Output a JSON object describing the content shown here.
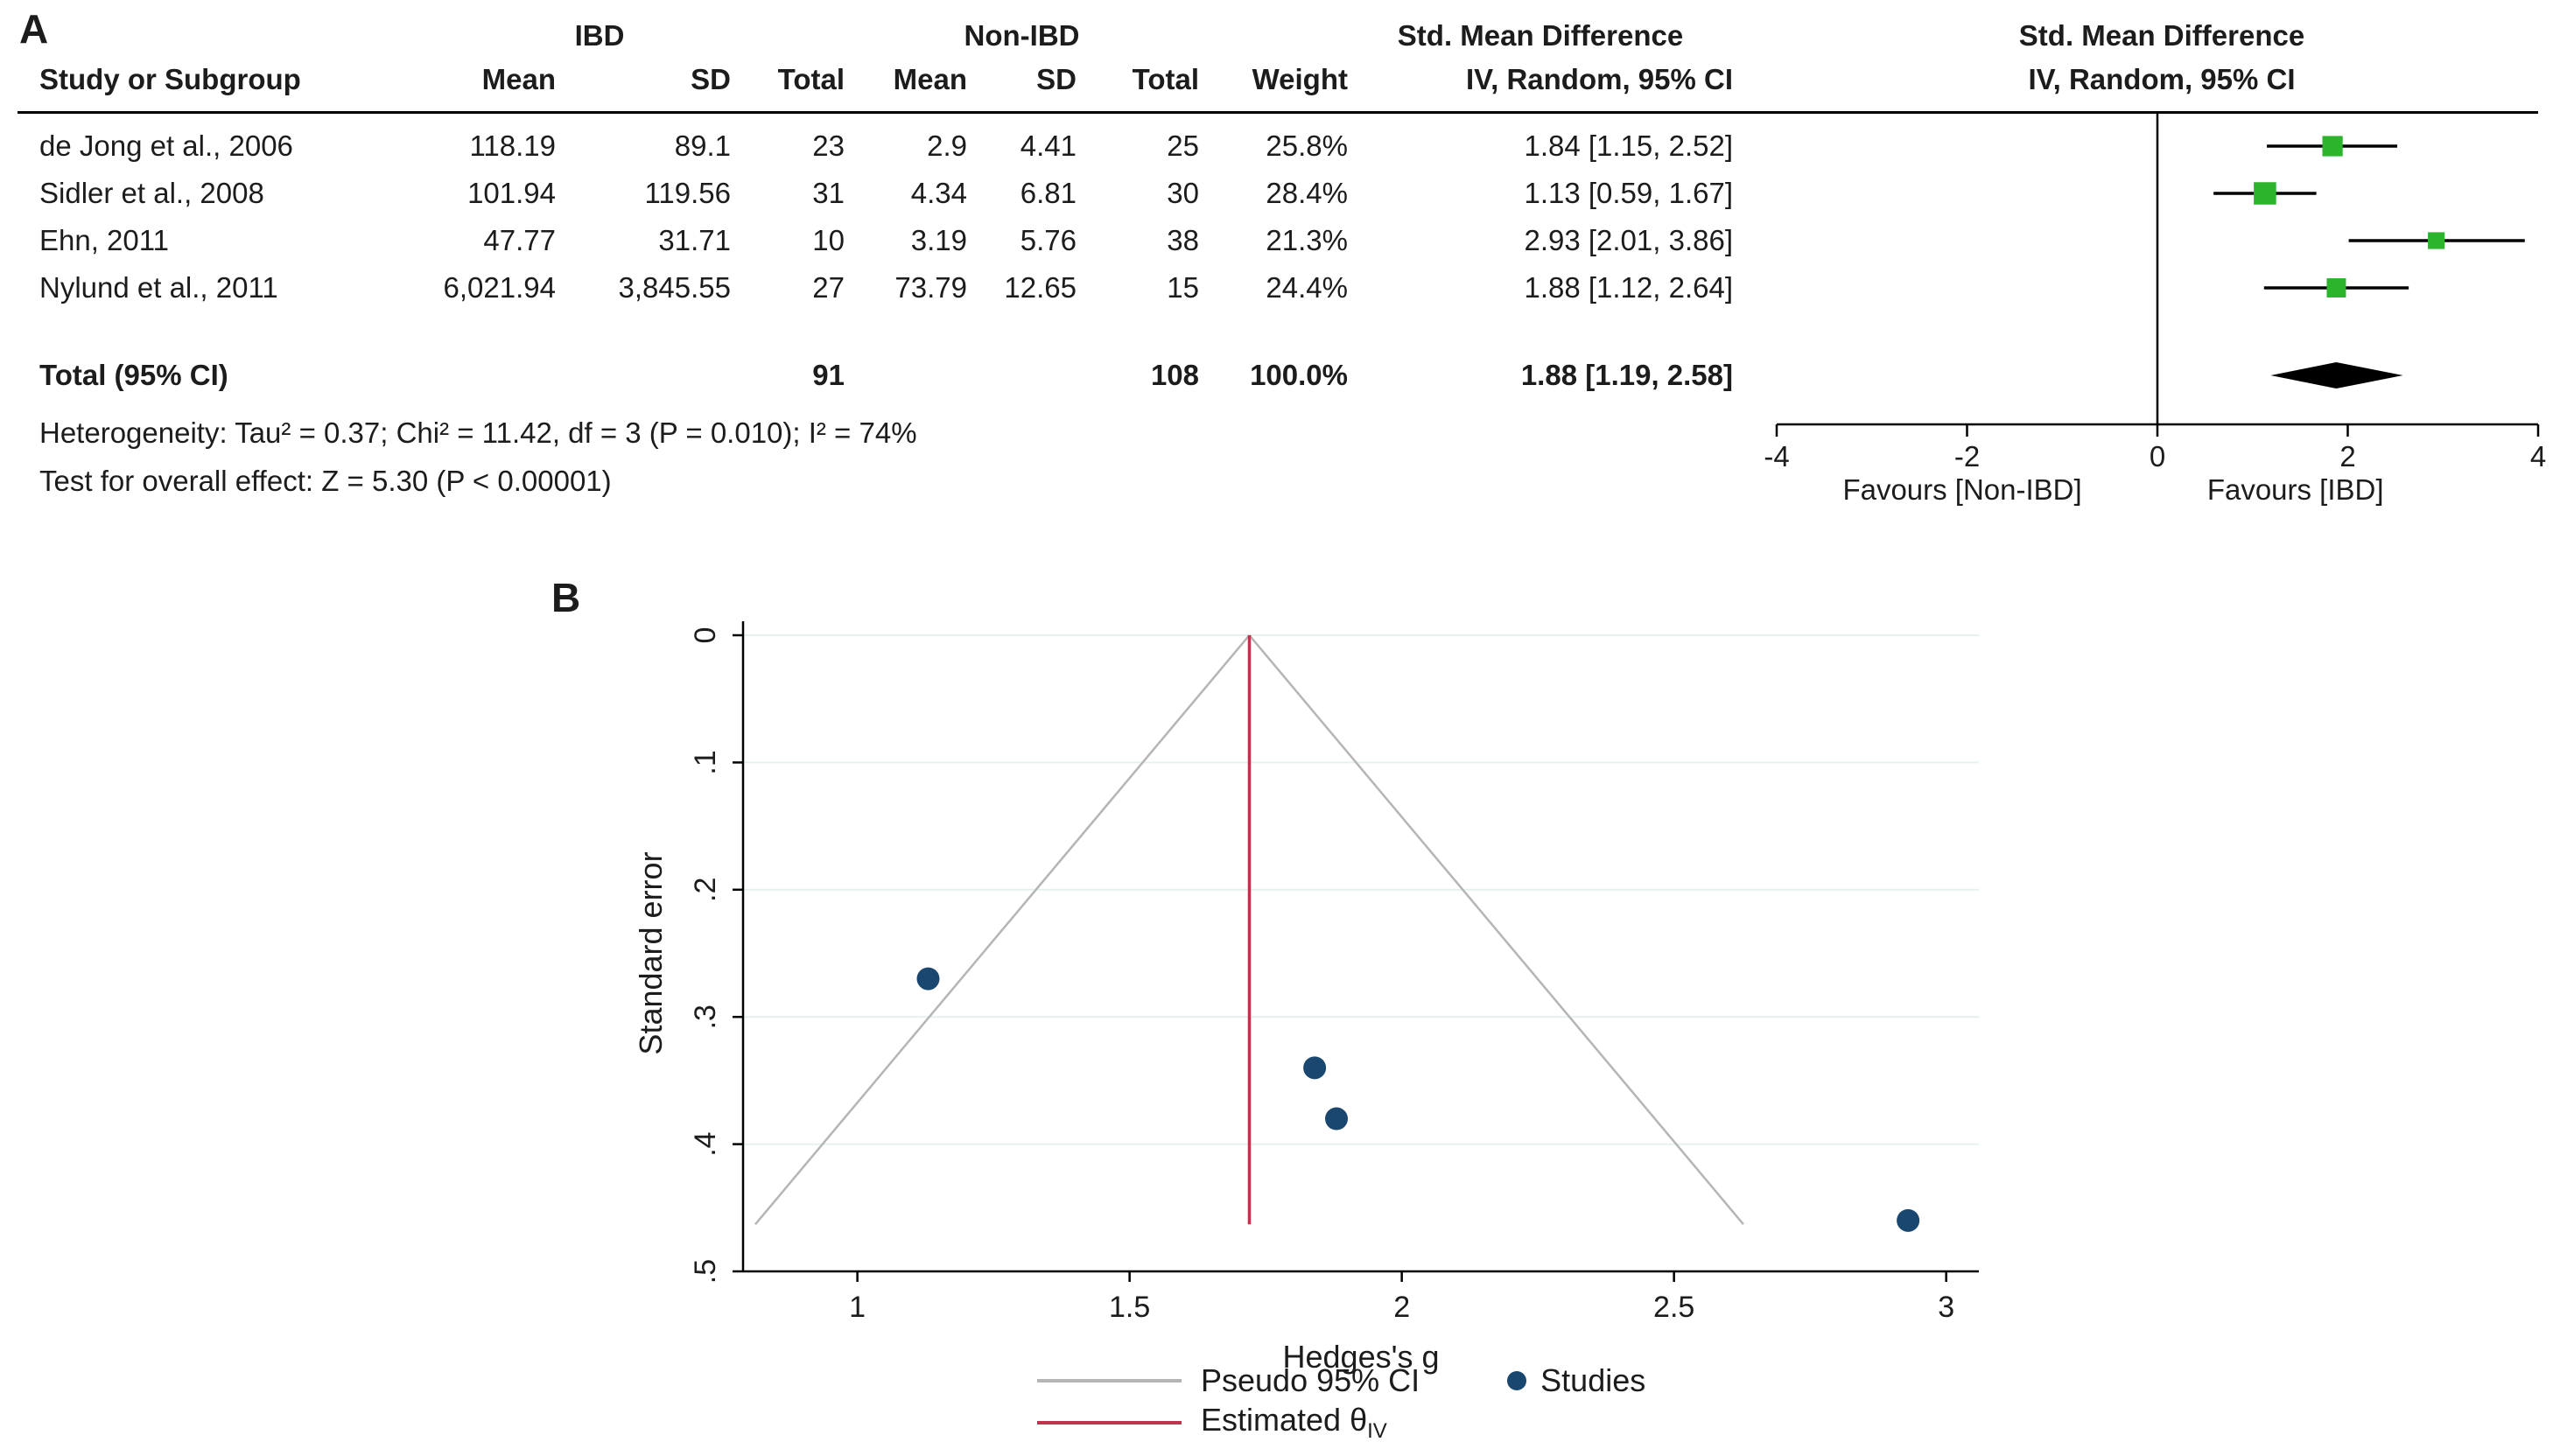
{
  "panel_a": {
    "label": "A",
    "columns": {
      "study": "Study or Subgroup",
      "mean": "Mean",
      "sd": "SD",
      "total": "Total",
      "weight": "Weight",
      "ci": "IV, Random, 95% CI"
    },
    "group_headers": {
      "ibd": "IBD",
      "non_ibd": "Non-IBD",
      "smd": "Std. Mean Difference",
      "smd_plot": "Std. Mean Difference",
      "ci_plot": "IV, Random, 95% CI"
    }
  },
  "panel_b": {
    "label": "B"
  },
  "chart_data": [
    {
      "type": "forest",
      "panel": "A",
      "effect_measure": "Std. Mean Difference",
      "model": "IV, Random, 95% CI",
      "studies": [
        {
          "name": "de Jong et al., 2006",
          "ibd_mean": "118.19",
          "ibd_sd": "89.1",
          "ibd_total": "23",
          "non_mean": "2.9",
          "non_sd": "4.41",
          "non_total": "25",
          "weight": "25.8%",
          "ci_text": "1.84 [1.15, 2.52]",
          "est": 1.84,
          "lo": 1.15,
          "hi": 2.52
        },
        {
          "name": "Sidler et al., 2008",
          "ibd_mean": "101.94",
          "ibd_sd": "119.56",
          "ibd_total": "31",
          "non_mean": "4.34",
          "non_sd": "6.81",
          "non_total": "30",
          "weight": "28.4%",
          "ci_text": "1.13 [0.59, 1.67]",
          "est": 1.13,
          "lo": 0.59,
          "hi": 1.67
        },
        {
          "name": "Ehn, 2011",
          "ibd_mean": "47.77",
          "ibd_sd": "31.71",
          "ibd_total": "10",
          "non_mean": "3.19",
          "non_sd": "5.76",
          "non_total": "38",
          "weight": "21.3%",
          "ci_text": "2.93 [2.01, 3.86]",
          "est": 2.93,
          "lo": 2.01,
          "hi": 3.86
        },
        {
          "name": "Nylund et al., 2011",
          "ibd_mean": "6,021.94",
          "ibd_sd": "3,845.55",
          "ibd_total": "27",
          "non_mean": "73.79",
          "non_sd": "12.65",
          "non_total": "15",
          "weight": "24.4%",
          "ci_text": "1.88 [1.12, 2.64]",
          "est": 1.88,
          "lo": 1.12,
          "hi": 2.64
        }
      ],
      "total": {
        "label": "Total (95% CI)",
        "ibd_total": "91",
        "non_total": "108",
        "weight": "100.0%",
        "ci_text": "1.88 [1.19, 2.58]",
        "est": 1.88,
        "lo": 1.19,
        "hi": 2.58
      },
      "heterogeneity": "Heterogeneity: Tau² = 0.37; Chi² = 11.42, df = 3 (P = 0.010); I² = 74%",
      "overall_effect": "Test for overall effect: Z = 5.30 (P < 0.00001)",
      "xlim": [
        -4,
        4
      ],
      "xticks": [
        -4,
        -2,
        0,
        2,
        4
      ],
      "favours_left": "Favours [Non-IBD]",
      "favours_right": "Favours [IBD]",
      "marker_color": "#2db42d",
      "line_color": "#000000",
      "diamond_color": "#000000"
    },
    {
      "type": "scatter",
      "panel": "B",
      "subtype": "funnel",
      "xlabel": "Hedges's g",
      "ylabel": "Standard error",
      "xlim": [
        0.79,
        3.06
      ],
      "ylim": [
        0,
        0.5
      ],
      "y_inverted": true,
      "xticks": [
        1,
        1.5,
        2,
        2.5,
        3
      ],
      "yticks": [
        0,
        0.1,
        0.2,
        0.3,
        0.4,
        0.5
      ],
      "ytick_labels": [
        "0",
        ".1",
        ".2",
        ".3",
        ".4",
        ".5"
      ],
      "points": [
        {
          "x": 1.13,
          "se": 0.27
        },
        {
          "x": 1.84,
          "se": 0.34
        },
        {
          "x": 1.88,
          "se": 0.38
        },
        {
          "x": 2.93,
          "se": 0.46
        }
      ],
      "estimate_x": 1.72,
      "pseudo_ci_base_se": 0.463,
      "z_multiplier": 1.96,
      "point_color": "#1a476f",
      "pseudo_ci_color": "#b5b5b5",
      "estimate_color": "#c0334d",
      "grid_color": "#e6f1ef",
      "legend": {
        "pseudo": "Pseudo 95% CI",
        "studies": "Studies",
        "estimate": "Estimated θ",
        "estimate_sub": "IV"
      }
    }
  ]
}
